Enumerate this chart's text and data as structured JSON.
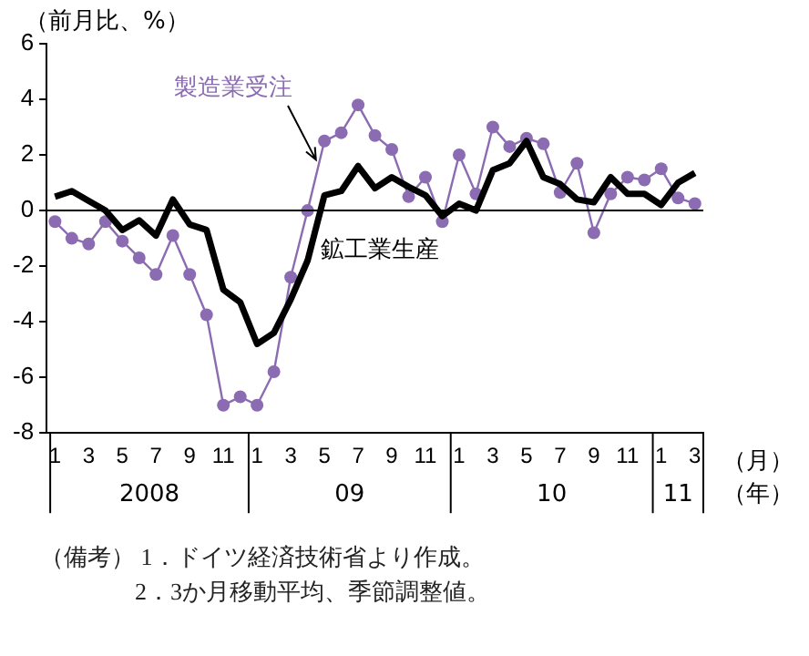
{
  "chart_data": {
    "type": "line",
    "ylabel": "（前月比、%）",
    "categories": [
      "1",
      null,
      "3",
      null,
      "5",
      null,
      "7",
      null,
      "9",
      null,
      "11",
      null,
      "1",
      null,
      "3",
      null,
      "5",
      null,
      "7",
      null,
      "9",
      null,
      "11",
      null,
      "1",
      null,
      "3",
      null,
      "5",
      null,
      "7",
      null,
      "9",
      null,
      "11",
      null,
      "1",
      null,
      "3"
    ],
    "series": [
      {
        "name": "製造業受注",
        "color": "#8b6bb1",
        "marker": "circle",
        "values": [
          -0.4,
          -1.0,
          -1.2,
          -0.4,
          -1.1,
          -1.7,
          -2.3,
          -0.9,
          -2.3,
          -3.75,
          -7.0,
          -6.7,
          -7.0,
          -5.8,
          -2.4,
          0,
          2.5,
          2.8,
          3.8,
          2.7,
          2.2,
          0.5,
          1.2,
          -0.4,
          2.0,
          0.6,
          3.0,
          2.3,
          2.6,
          2.4,
          0.65,
          1.7,
          -0.8,
          0.6,
          1.2,
          1.1,
          1.5,
          0.45,
          0.25
        ]
      },
      {
        "name": "鉱工業生産",
        "color": "#000000",
        "marker": "none",
        "values": [
          0.5,
          0.7,
          0.35,
          0,
          -0.7,
          -0.35,
          -0.9,
          0.4,
          -0.5,
          -0.7,
          -2.85,
          -3.3,
          -4.8,
          -4.4,
          -3.2,
          -1.8,
          0.55,
          0.7,
          1.6,
          0.8,
          1.2,
          0.85,
          0.55,
          -0.2,
          0.25,
          0,
          1.45,
          1.7,
          2.5,
          1.2,
          0.95,
          0.4,
          0.3,
          1.2,
          0.6,
          0.6,
          0.2,
          1.0,
          1.35
        ]
      }
    ],
    "ylim": [
      -8,
      6
    ],
    "yticks": [
      -8,
      -6,
      -4,
      -2,
      0,
      2,
      4,
      6
    ],
    "ref_lines": [
      {
        "axis": "y",
        "value": 0,
        "color": "#000000"
      }
    ],
    "grid": false,
    "legend": false,
    "annotations": [
      "2008",
      "09",
      "10",
      "11",
      "（月）",
      "（年）",
      "（備考） 1．ドイツ経済技術省より作成。",
      "2．3か月移動平均、季節調整値。"
    ]
  }
}
